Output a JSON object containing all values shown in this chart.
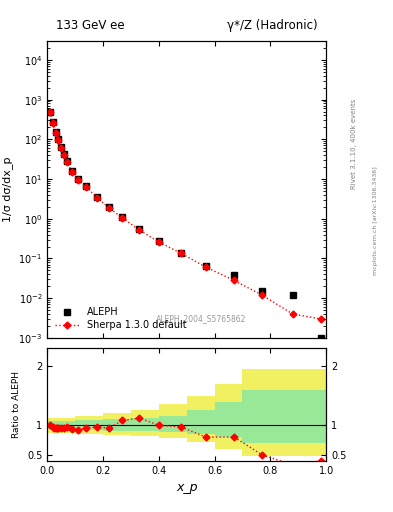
{
  "title_left": "133 GeV ee",
  "title_right": "γ*/Z (Hadronic)",
  "ylabel_main": "1/σ dσ/dx_p",
  "ylabel_ratio": "Ratio to ALEPH",
  "xlabel": "x_p",
  "right_label_top": "Rivet 3.1.10, 400k events",
  "right_label_bottom": "mcplots.cern.ch [arXiv:1306.3436]",
  "watermark": "ALEPH_2004_S5765862",
  "aleph_x": [
    0.01,
    0.02,
    0.03,
    0.04,
    0.05,
    0.06,
    0.07,
    0.09,
    0.11,
    0.14,
    0.18,
    0.22,
    0.27,
    0.33,
    0.4,
    0.48,
    0.57,
    0.67,
    0.77,
    0.88,
    0.98
  ],
  "aleph_y": [
    500,
    270,
    155,
    100,
    65,
    42,
    28,
    16,
    10,
    6.5,
    3.5,
    2.0,
    1.1,
    0.55,
    0.28,
    0.14,
    0.065,
    0.038,
    0.015,
    0.012,
    0.001
  ],
  "sherpa_x": [
    0.01,
    0.02,
    0.03,
    0.04,
    0.05,
    0.06,
    0.07,
    0.09,
    0.11,
    0.14,
    0.18,
    0.22,
    0.27,
    0.33,
    0.4,
    0.48,
    0.57,
    0.67,
    0.77,
    0.88,
    0.98
  ],
  "sherpa_y": [
    490,
    260,
    148,
    95,
    62,
    40,
    27,
    15,
    9.2,
    6.2,
    3.4,
    1.9,
    1.05,
    0.52,
    0.26,
    0.135,
    0.06,
    0.028,
    0.012,
    0.004,
    0.003
  ],
  "ratio_x": [
    0.01,
    0.02,
    0.025,
    0.03,
    0.035,
    0.04,
    0.05,
    0.06,
    0.07,
    0.09,
    0.11,
    0.14,
    0.18,
    0.22,
    0.27,
    0.33,
    0.4,
    0.48,
    0.57,
    0.67,
    0.77,
    0.88,
    0.98
  ],
  "ratio_y": [
    1.0,
    0.97,
    0.96,
    0.955,
    0.96,
    0.95,
    0.954,
    0.952,
    0.964,
    0.938,
    0.92,
    0.955,
    0.971,
    0.95,
    1.08,
    1.12,
    1.0,
    0.97,
    0.8,
    0.8,
    0.5,
    0.33,
    0.4
  ],
  "green_band_x": [
    0.0,
    0.05,
    0.1,
    0.2,
    0.3,
    0.4,
    0.5,
    0.6,
    0.7,
    1.0
  ],
  "green_band_lo": [
    0.93,
    0.93,
    0.92,
    0.91,
    0.9,
    0.88,
    0.85,
    0.8,
    0.7,
    0.7
  ],
  "green_band_hi": [
    1.07,
    1.07,
    1.08,
    1.1,
    1.12,
    1.16,
    1.25,
    1.4,
    1.6,
    1.6
  ],
  "yellow_band_x": [
    0.0,
    0.05,
    0.1,
    0.2,
    0.3,
    0.4,
    0.5,
    0.6,
    0.7,
    1.0
  ],
  "yellow_band_lo": [
    0.87,
    0.87,
    0.86,
    0.84,
    0.82,
    0.78,
    0.72,
    0.6,
    0.48,
    0.48
  ],
  "yellow_band_hi": [
    1.13,
    1.13,
    1.15,
    1.2,
    1.26,
    1.35,
    1.5,
    1.7,
    1.95,
    1.95
  ],
  "aleph_color": "black",
  "sherpa_color": "red",
  "aleph_marker": "s",
  "sherpa_marker": "D",
  "green_color": "#98e898",
  "yellow_color": "#f0f060",
  "ylim_main": [
    0.001,
    30000
  ],
  "ylim_ratio": [
    0.4,
    2.3
  ],
  "xlim": [
    0.0,
    1.0
  ],
  "fig_width": 3.93,
  "fig_height": 5.12,
  "dpi": 100
}
